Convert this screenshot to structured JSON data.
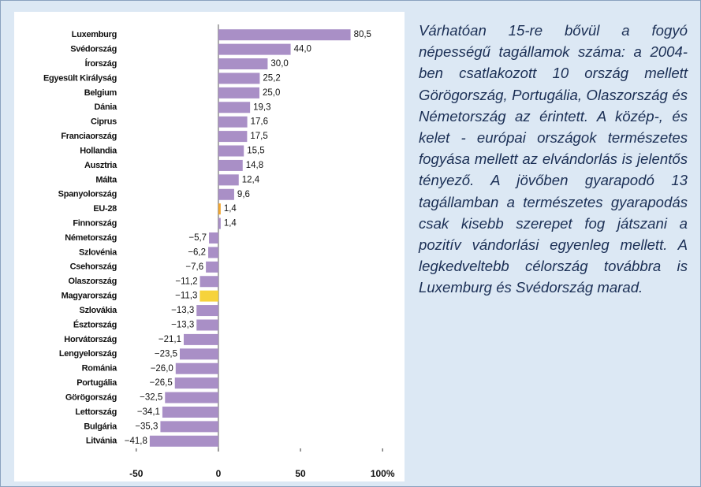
{
  "chart_data": {
    "type": "barh",
    "categories": [
      "Luxemburg",
      "Svédország",
      "Írország",
      "Egyesült Királyság",
      "Belgium",
      "Dánia",
      "Ciprus",
      "Franciaország",
      "Hollandia",
      "Ausztria",
      "Málta",
      "Spanyolország",
      "EU-28",
      "Finnország",
      "Németország",
      "Szlovénia",
      "Csehország",
      "Olaszország",
      "Magyarország",
      "Szlovákia",
      "Észtország",
      "Horvátország",
      "Lengyelország",
      "Románia",
      "Portugália",
      "Görögország",
      "Lettország",
      "Bulgária",
      "Litvánia"
    ],
    "values": [
      80.5,
      44.0,
      30.0,
      25.2,
      25.0,
      19.3,
      17.6,
      17.5,
      15.5,
      14.8,
      12.4,
      9.6,
      1.4,
      1.4,
      -5.7,
      -6.2,
      -7.6,
      -11.2,
      -11.3,
      -13.3,
      -13.3,
      -21.1,
      -23.5,
      -26.0,
      -26.5,
      -32.5,
      -34.1,
      -35.3,
      -41.8
    ],
    "value_labels": [
      "80,5",
      "44,0",
      "30,0",
      "25,2",
      "25,0",
      "19,3",
      "17,6",
      "17,5",
      "15,5",
      "14,8",
      "12,4",
      "9,6",
      "1,4",
      "1,4",
      "−5,7",
      "−6,2",
      "−7,6",
      "−11,2",
      "−11,3",
      "−13,3",
      "−13,3",
      "−21,1",
      "−23,5",
      "−26,0",
      "−26,5",
      "−32,5",
      "−34,1",
      "−35,3",
      "−41,8"
    ],
    "colors": [
      "#a98fc6",
      "#a98fc6",
      "#a98fc6",
      "#a98fc6",
      "#a98fc6",
      "#a98fc6",
      "#a98fc6",
      "#a98fc6",
      "#a98fc6",
      "#a98fc6",
      "#a98fc6",
      "#a98fc6",
      "#f0a630",
      "#a98fc6",
      "#a98fc6",
      "#a98fc6",
      "#a98fc6",
      "#a98fc6",
      "#f6d33c",
      "#a98fc6",
      "#a98fc6",
      "#a98fc6",
      "#a98fc6",
      "#a98fc6",
      "#a98fc6",
      "#a98fc6",
      "#a98fc6",
      "#a98fc6",
      "#a98fc6"
    ],
    "xlim": [
      -60,
      110
    ],
    "xticks": [
      -50,
      0,
      50,
      {
        "value": 100,
        "label": "100%"
      }
    ]
  },
  "note": "Várhatóan 15-re bővül a fogyó népességű tagállamok száma: a 2004-ben csatlakozott 10 ország mellett Görögország, Portugália, Olaszország és Németország az érintett. A közép-, és kelet - európai országok természetes fogyása mellett az elvándorlás is jelentős tényező. A jövőben gyarapodó 13 tagállamban a természetes gyarapodás csak kisebb szerepet fog játszani a pozitív vándorlási egyenleg mellett. A legkedveltebb célország továbbra is Luxemburg és Svédország marad."
}
